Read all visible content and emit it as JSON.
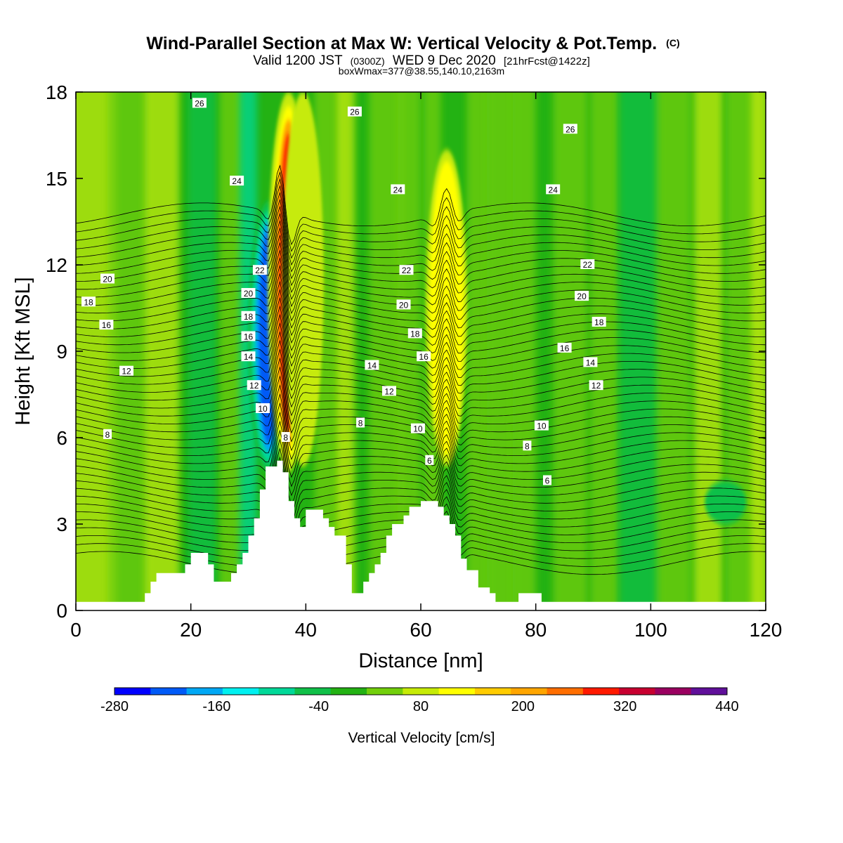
{
  "header": {
    "title_main": "Wind-Parallel Section at Max W: Vertical Velocity & Pot.Temp.",
    "title_mark": "(C)",
    "subtitle_parts": [
      "Valid 1200 JST",
      "(0300Z)",
      "WED 9 Dec 2020",
      "[21hrFcst@1422z]"
    ],
    "info": "boxWmax=377@38.55,140.10,2163m"
  },
  "chart_data": {
    "type": "heatmap",
    "xlabel": "Distance [nm]",
    "ylabel": "Height [Kft MSL]",
    "xlim": [
      0,
      120
    ],
    "ylim": [
      0,
      18
    ],
    "x_ticks": [
      0,
      20,
      40,
      60,
      80,
      100,
      120
    ],
    "y_ticks": [
      0,
      3,
      6,
      9,
      12,
      15,
      18
    ],
    "colorbar": {
      "label": "Vertical Velocity [cm/s]",
      "range": [
        -280,
        440
      ],
      "tick_labels": [
        -280,
        -160,
        -40,
        80,
        200,
        320,
        440
      ],
      "colors": [
        "#0000ff",
        "#005af7",
        "#00a8f5",
        "#00f0f0",
        "#00d898",
        "#10c048",
        "#23b213",
        "#72cf0b",
        "#c6eb07",
        "#ffff00",
        "#ffcc00",
        "#ffa600",
        "#ff6e00",
        "#ff1a00",
        "#c80030",
        "#9a0060",
        "#60109a"
      ]
    },
    "velocity_features": [
      {
        "x": 33.5,
        "y_bottom": 4.8,
        "y_top": 14.2,
        "value": -260
      },
      {
        "x": 37.0,
        "y_bottom": 4.8,
        "y_top": 18,
        "value": 330
      },
      {
        "x": 39.5,
        "y_bottom": 5.0,
        "y_top": 18,
        "value": 60
      },
      {
        "x": 64.5,
        "y_bottom": 5.0,
        "y_top": 16.0,
        "value": 120
      },
      {
        "x": 113,
        "y_bottom": 3.0,
        "y_top": 4.5,
        "value": -60
      }
    ],
    "terrain": {
      "x": [
        0,
        12,
        13,
        14,
        19,
        20,
        22,
        23,
        24,
        27,
        28,
        29,
        30,
        31,
        32,
        33,
        35,
        36,
        37,
        38,
        39,
        40,
        42,
        43,
        44,
        45,
        47,
        48,
        49,
        50,
        51,
        52,
        53,
        54,
        55,
        57,
        58,
        60,
        61,
        63,
        64,
        65,
        66,
        67,
        68,
        70,
        72,
        73,
        74,
        77,
        78,
        80,
        81,
        84,
        120
      ],
      "height_kft": [
        0.3,
        0.6,
        1.0,
        1.3,
        1.6,
        2.0,
        2.0,
        1.6,
        1.0,
        1.3,
        1.6,
        2.0,
        2.6,
        3.2,
        4.2,
        5.0,
        5.2,
        4.8,
        3.8,
        3.2,
        2.9,
        3.5,
        3.5,
        3.2,
        2.9,
        2.6,
        1.6,
        0.6,
        0.6,
        1.0,
        1.3,
        1.6,
        2.0,
        2.6,
        3.0,
        3.3,
        3.6,
        3.8,
        3.8,
        3.6,
        3.3,
        3.0,
        2.6,
        1.8,
        1.4,
        0.8,
        0.6,
        0.3,
        0.3,
        0.6,
        0.6,
        0.6,
        0.3,
        0.3,
        0.3
      ]
    },
    "theta_contour_labels": [
      {
        "text": "26",
        "x": 21.5,
        "y": 17.6
      },
      {
        "text": "26",
        "x": 48.5,
        "y": 17.3
      },
      {
        "text": "26",
        "x": 86,
        "y": 16.7
      },
      {
        "text": "24",
        "x": 28,
        "y": 14.9
      },
      {
        "text": "24",
        "x": 56,
        "y": 14.6
      },
      {
        "text": "24",
        "x": 83,
        "y": 14.6
      },
      {
        "text": "22",
        "x": 32,
        "y": 11.8
      },
      {
        "text": "22",
        "x": 57.5,
        "y": 11.8
      },
      {
        "text": "22",
        "x": 89,
        "y": 12.0
      },
      {
        "text": "20",
        "x": 5.5,
        "y": 11.5
      },
      {
        "text": "20",
        "x": 30,
        "y": 11.0
      },
      {
        "text": "20",
        "x": 57,
        "y": 10.6
      },
      {
        "text": "20",
        "x": 88,
        "y": 10.9
      },
      {
        "text": "18",
        "x": 2.2,
        "y": 10.7
      },
      {
        "text": "18",
        "x": 30,
        "y": 10.2
      },
      {
        "text": "18",
        "x": 59,
        "y": 9.6
      },
      {
        "text": "18",
        "x": 91,
        "y": 10.0
      },
      {
        "text": "16",
        "x": 5.3,
        "y": 9.9
      },
      {
        "text": "16",
        "x": 30,
        "y": 9.5
      },
      {
        "text": "16",
        "x": 60.5,
        "y": 8.8
      },
      {
        "text": "16",
        "x": 85,
        "y": 9.1
      },
      {
        "text": "14",
        "x": 30,
        "y": 8.8
      },
      {
        "text": "14",
        "x": 51.5,
        "y": 8.5
      },
      {
        "text": "14",
        "x": 89.5,
        "y": 8.6
      },
      {
        "text": "12",
        "x": 8.8,
        "y": 8.3
      },
      {
        "text": "12",
        "x": 31,
        "y": 7.8
      },
      {
        "text": "12",
        "x": 54.5,
        "y": 7.6
      },
      {
        "text": "12",
        "x": 90.5,
        "y": 7.8
      },
      {
        "text": "10",
        "x": 32.5,
        "y": 7.0
      },
      {
        "text": "10",
        "x": 59.5,
        "y": 6.3
      },
      {
        "text": "10",
        "x": 81,
        "y": 6.4
      },
      {
        "text": "8",
        "x": 5.5,
        "y": 6.1
      },
      {
        "text": "8",
        "x": 36.5,
        "y": 6.0
      },
      {
        "text": "8",
        "x": 49.5,
        "y": 6.5
      },
      {
        "text": "8",
        "x": 78.5,
        "y": 5.7
      },
      {
        "text": "6",
        "x": 61.5,
        "y": 5.2
      },
      {
        "text": "6",
        "x": 82,
        "y": 4.5
      }
    ]
  }
}
